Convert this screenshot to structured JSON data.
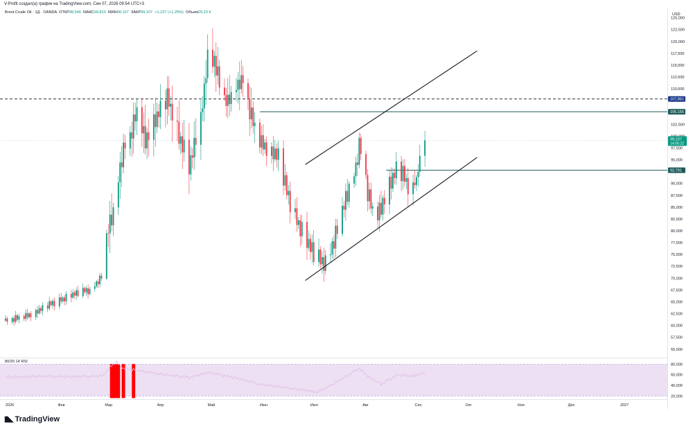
{
  "header": {
    "creator_line": "V-Profit создал(а) график на TradingView.com, Сен 07, 2026 09:54 UTC+3"
  },
  "legend": {
    "symbol": "Brent Crude Oil · 1Д · OANDA",
    "open_label": "ОТКР",
    "open_value": "98,546",
    "high_label": "МАКС",
    "high_value": "99,819",
    "low_label": "МИН",
    "low_value": "98,107",
    "close_label": "ЗАКР",
    "close_value": "99,107",
    "change": "+1,227 (+1,25%)",
    "volume_label": "Объем",
    "volume_value": "25,23 K"
  },
  "rsi_legend": "80/20 14 RSI",
  "footer": {
    "brand": "TradingView"
  },
  "colors": {
    "up": "#089981",
    "down": "#f23645",
    "rsi_band": "#ede0f3",
    "rsi_line": "#e1bee7",
    "alert": "#ff0000",
    "level": "#1e5b5b",
    "dashed": "#2a2e39"
  },
  "chart_data": {
    "type": "candlestick",
    "currency": "USD",
    "ylim": [
      53.5,
      127
    ],
    "y_ticks": [
      "55,000",
      "57,500",
      "60,000",
      "62,500",
      "65,000",
      "67,500",
      "70,000",
      "72,500",
      "75,000",
      "77,500",
      "80,000",
      "82,500",
      "85,000",
      "87,500",
      "90,000",
      "92,500",
      "95,000",
      "97,500",
      "100,000",
      "102,500",
      "105,000",
      "107,500",
      "110,000",
      "112,500",
      "115,000",
      "117,500",
      "120,000",
      "122,500",
      "125,000"
    ],
    "x_labels": [
      {
        "label": "2026",
        "date": "2026-01-01"
      },
      {
        "label": "Фев",
        "date": "2026-02-01"
      },
      {
        "label": "Мар",
        "date": "2026-03-01"
      },
      {
        "label": "Апр",
        "date": "2026-04-01"
      },
      {
        "label": "Май",
        "date": "2026-05-01"
      },
      {
        "label": "Июн",
        "date": "2026-06-01"
      },
      {
        "label": "Июл",
        "date": "2026-07-01"
      },
      {
        "label": "Авг",
        "date": "2026-08-01"
      },
      {
        "label": "Сен",
        "date": "2026-09-01"
      },
      {
        "label": "Окт",
        "date": "2026-10-01"
      },
      {
        "label": "Ноя",
        "date": "2026-11-01"
      },
      {
        "label": "Дек",
        "date": "2026-12-01"
      },
      {
        "label": "2027",
        "date": "2027-01-01"
      }
    ],
    "anchor_points": [
      [
        "2026-01-01",
        61.0
      ],
      [
        "2026-01-10",
        61.5
      ],
      [
        "2026-01-20",
        63.0
      ],
      [
        "2026-01-31",
        65.0
      ],
      [
        "2026-02-10",
        66.5
      ],
      [
        "2026-02-20",
        67.5
      ],
      [
        "2026-02-28",
        70.5
      ],
      [
        "2026-03-02",
        79.0
      ],
      [
        "2026-03-06",
        84.0
      ],
      [
        "2026-03-10",
        93.0
      ],
      [
        "2026-03-12",
        98.0
      ],
      [
        "2026-03-16",
        100.0
      ],
      [
        "2026-03-20",
        105.0
      ],
      [
        "2026-03-25",
        99.0
      ],
      [
        "2026-03-31",
        104.0
      ],
      [
        "2026-04-07",
        108.0
      ],
      [
        "2026-04-14",
        100.0
      ],
      [
        "2026-04-20",
        94.0
      ],
      [
        "2026-04-27",
        103.0
      ],
      [
        "2026-05-01",
        117.0
      ],
      [
        "2026-05-05",
        116.0
      ],
      [
        "2026-05-09",
        109.0
      ],
      [
        "2026-05-13",
        107.0
      ],
      [
        "2026-05-17",
        110.0
      ],
      [
        "2026-05-22",
        112.0
      ],
      [
        "2026-05-26",
        105.0
      ],
      [
        "2026-05-31",
        99.0
      ],
      [
        "2026-06-07",
        97.0
      ],
      [
        "2026-06-12",
        95.5
      ],
      [
        "2026-06-17",
        88.0
      ],
      [
        "2026-06-22",
        83.0
      ],
      [
        "2026-06-27",
        79.0
      ],
      [
        "2026-07-03",
        75.0
      ],
      [
        "2026-07-08",
        73.0
      ],
      [
        "2026-07-13",
        76.0
      ],
      [
        "2026-07-17",
        80.0
      ],
      [
        "2026-07-20",
        84.0
      ],
      [
        "2026-07-24",
        89.0
      ],
      [
        "2026-07-28",
        93.0
      ],
      [
        "2026-07-30",
        99.0
      ],
      [
        "2026-08-02",
        94.0
      ],
      [
        "2026-08-04",
        88.0
      ],
      [
        "2026-08-07",
        84.0
      ],
      [
        "2026-08-09",
        82.0
      ],
      [
        "2026-08-13",
        86.0
      ],
      [
        "2026-08-18",
        91.0
      ],
      [
        "2026-08-22",
        93.5
      ],
      [
        "2026-08-26",
        91.0
      ],
      [
        "2026-08-29",
        88.0
      ],
      [
        "2026-09-02",
        91.0
      ],
      [
        "2026-09-05",
        97.0
      ],
      [
        "2026-09-07",
        99.107
      ]
    ],
    "candle_noise": [
      0.8,
      -0.5,
      1.2,
      -1.0,
      0.6,
      -0.9,
      1.4,
      -0.3,
      0.9,
      -1.3,
      0.4,
      -0.7,
      1.1,
      -0.6,
      0.5,
      -1.1,
      1.3,
      -0.4,
      0.7,
      -0.8
    ],
    "levels": [
      {
        "price": 107.861,
        "label": "107,861",
        "style": "dashed",
        "start": "2026-01-01"
      },
      {
        "price": 105.155,
        "label": "105,155",
        "style": "solid",
        "start": "2026-06-01"
      },
      {
        "price": 92.791,
        "label": "92,791",
        "style": "solid",
        "start": "2026-08-15"
      }
    ],
    "current_price": {
      "price": 99.107,
      "label": "99,107",
      "countdown": "14:05:22"
    },
    "trendlines": [
      {
        "from": [
          "2026-06-28",
          94.0
        ],
        "to": [
          "2026-10-08",
          118.0
        ]
      },
      {
        "from": [
          "2026-06-28",
          69.5
        ],
        "to": [
          "2026-10-08",
          95.5
        ]
      }
    ],
    "rsi": {
      "ylim": [
        14,
        87
      ],
      "y_ticks": [
        "20,000",
        "40,000",
        "60,000",
        "80,000"
      ],
      "upper": 80,
      "lower": 20,
      "start": "2026-01-01",
      "end": "2026-09-07",
      "anchor_points": [
        [
          "2026-01-01",
          55
        ],
        [
          "2026-01-20",
          57
        ],
        [
          "2026-02-10",
          56
        ],
        [
          "2026-02-28",
          58
        ],
        [
          "2026-03-05",
          78
        ],
        [
          "2026-03-08",
          83
        ],
        [
          "2026-03-12",
          72
        ],
        [
          "2026-03-20",
          68
        ],
        [
          "2026-04-05",
          60
        ],
        [
          "2026-04-20",
          55
        ],
        [
          "2026-05-02",
          64
        ],
        [
          "2026-05-15",
          56
        ],
        [
          "2026-06-01",
          42
        ],
        [
          "2026-06-20",
          34
        ],
        [
          "2026-07-05",
          27
        ],
        [
          "2026-07-15",
          43
        ],
        [
          "2026-07-30",
          72
        ],
        [
          "2026-08-05",
          55
        ],
        [
          "2026-08-12",
          42
        ],
        [
          "2026-08-22",
          60
        ],
        [
          "2026-08-30",
          57
        ],
        [
          "2026-09-07",
          63
        ]
      ],
      "alert_bars": [
        {
          "from": "2026-03-04",
          "to": "2026-03-10"
        },
        {
          "from": "2026-03-11",
          "to": "2026-03-13"
        },
        {
          "from": "2026-03-17",
          "to": "2026-03-19"
        }
      ]
    }
  }
}
